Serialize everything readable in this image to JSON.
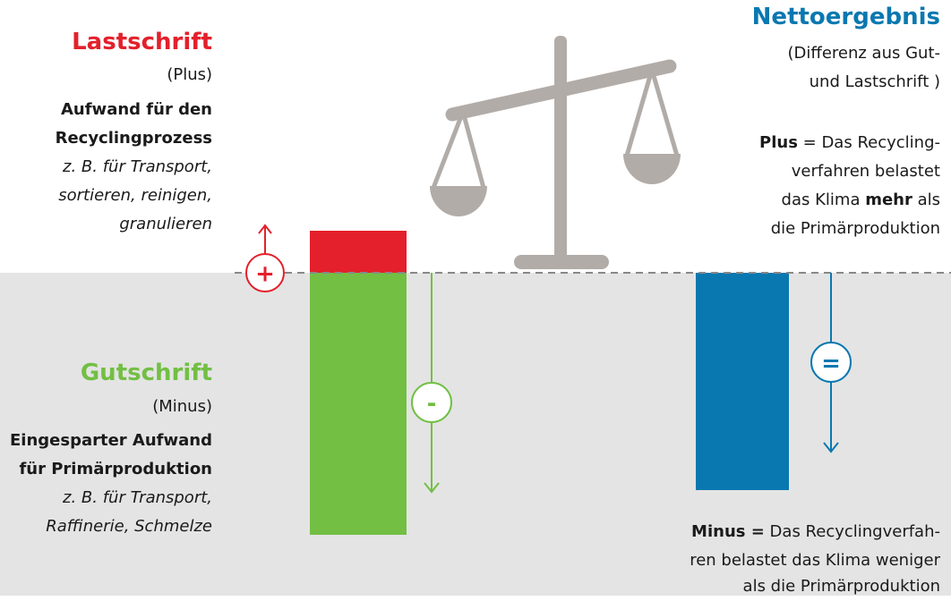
{
  "lastschrift": {
    "title": "Lastschrift",
    "subtitle": "(Plus)",
    "description": [
      "Aufwand für den",
      "Recyclingprozess"
    ],
    "examples": [
      "z. B. für Transport,",
      "sortieren, reinigen,",
      "granulieren"
    ]
  },
  "gutschrift": {
    "title": "Gutschrift",
    "subtitle": "(Minus)",
    "description": [
      "Eingesparter Aufwand",
      "für Primärproduktion"
    ],
    "examples": [
      "z. B. für Transport,",
      "Raffinerie, Schmelze"
    ]
  },
  "nettoergebnis": {
    "title": "Nettoergebnis",
    "subtitle": [
      "(Differenz aus Gut-",
      "und Lastschrift )"
    ],
    "plus": {
      "label": "Plus",
      "line1_rest": " = Das Recycling-",
      "line2": "verfahren belastet",
      "line3_start": "das Klima ",
      "line3_bold": "mehr",
      "line3_end": " als",
      "line4": "die Primärproduktion"
    },
    "minus": {
      "label": "Minus =",
      "line1_rest": " Das Recyclingverfah-",
      "line2": "ren belastet das Klima weniger",
      "line3": "als die Primärproduktion"
    }
  },
  "symbols": {
    "plus": "+",
    "minus": "-",
    "equals": "="
  }
}
